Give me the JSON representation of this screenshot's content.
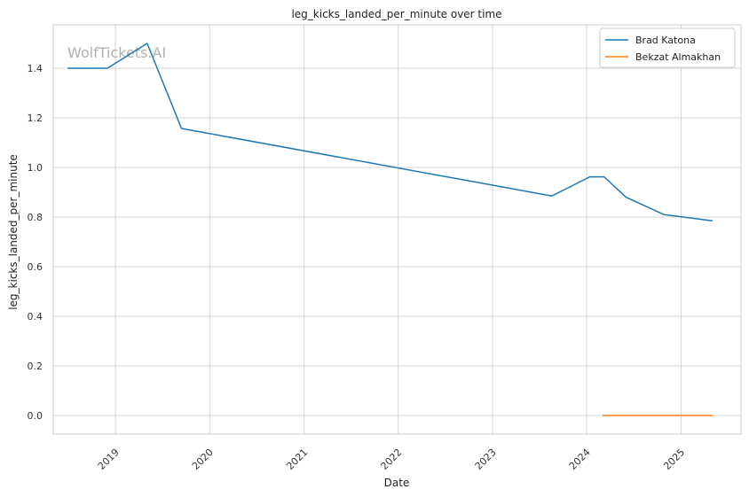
{
  "chart_data": {
    "type": "line",
    "title": "leg_kicks_landed_per_minute over time",
    "xlabel": "Date",
    "ylabel": "leg_kicks_landed_per_minute",
    "watermark": "WolfTickets.AI",
    "x_ticks": [
      "2019",
      "2020",
      "2021",
      "2022",
      "2023",
      "2024",
      "2025"
    ],
    "y_ticks": [
      "0.0",
      "0.2",
      "0.4",
      "0.6",
      "0.8",
      "1.0",
      "1.2",
      "1.4"
    ],
    "ylim": [
      -0.075,
      1.575
    ],
    "xlim": [
      "2018-05-05",
      "2025-08-21"
    ],
    "grid": true,
    "legend_position": "top-right",
    "series": [
      {
        "name": "Brad Katona",
        "color": "#1f77b4",
        "points": [
          {
            "x": "2018-06-30",
            "y": 1.4
          },
          {
            "x": "2018-12-01",
            "y": 1.4
          },
          {
            "x": "2019-05-04",
            "y": 1.5
          },
          {
            "x": "2019-09-14",
            "y": 1.157
          },
          {
            "x": "2023-08-19",
            "y": 0.885
          },
          {
            "x": "2024-01-13",
            "y": 0.962
          },
          {
            "x": "2024-03-09",
            "y": 0.962
          },
          {
            "x": "2024-06-01",
            "y": 0.88
          },
          {
            "x": "2024-10-26",
            "y": 0.81
          },
          {
            "x": "2025-05-03",
            "y": 0.785
          }
        ]
      },
      {
        "name": "Bekzat Almakhan",
        "color": "#ff7f0e",
        "points": [
          {
            "x": "2024-03-02",
            "y": 0.0
          },
          {
            "x": "2025-05-03",
            "y": 0.0
          }
        ]
      }
    ]
  }
}
